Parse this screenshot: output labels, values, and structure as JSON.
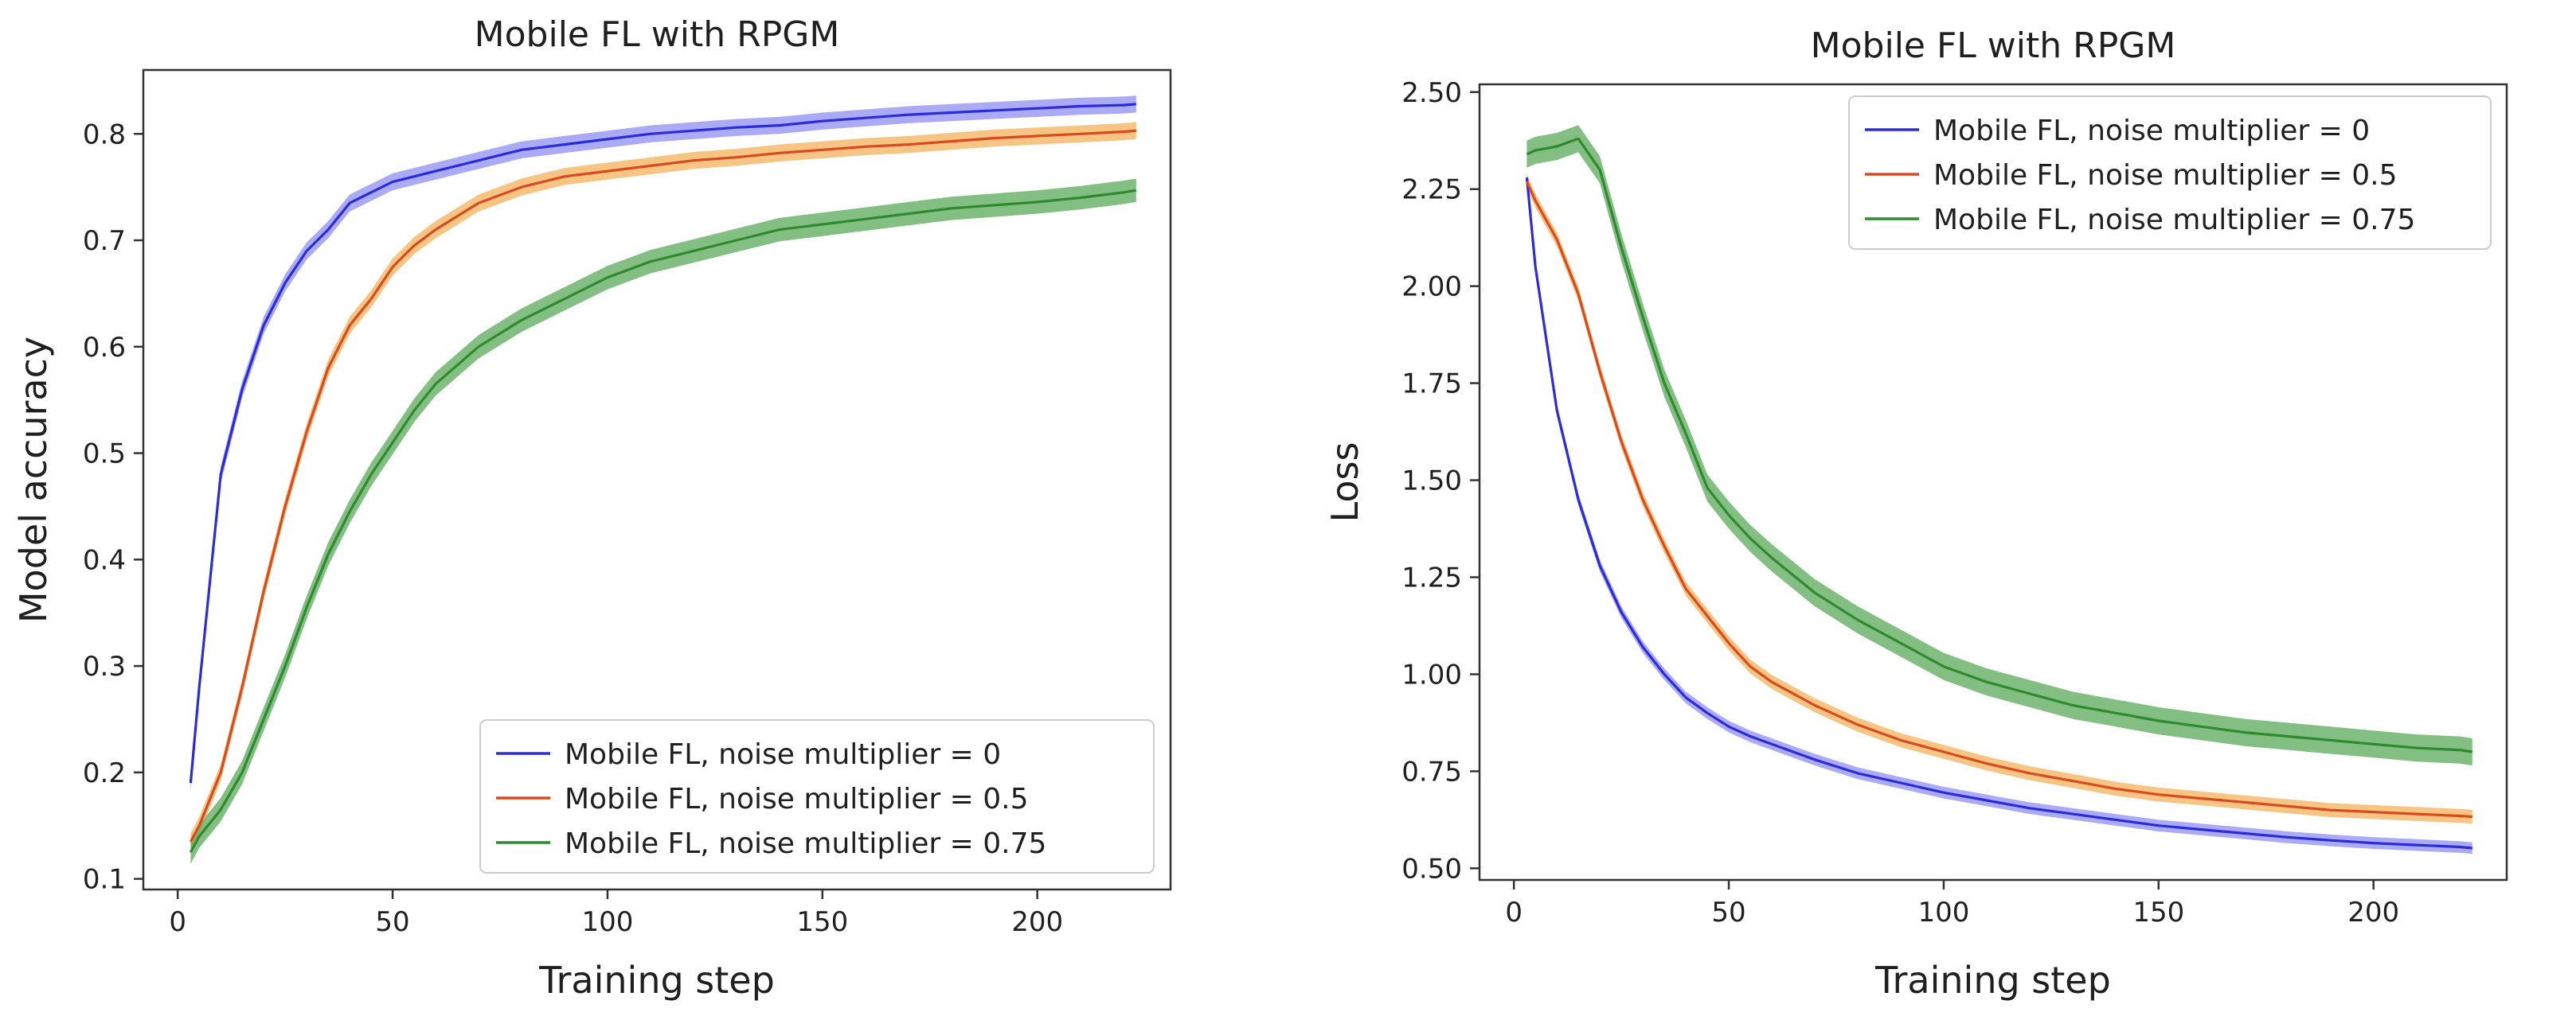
{
  "chart_data": [
    {
      "type": "line",
      "title": "Mobile FL with RPGM",
      "xlabel": "Training step",
      "ylabel": "Model accuracy",
      "xlim": [
        -8,
        231
      ],
      "ylim": [
        0.09,
        0.86
      ],
      "xticks": [
        0,
        50,
        100,
        150,
        200
      ],
      "yticks": [
        0.1,
        0.2,
        0.3,
        0.4,
        0.5,
        0.6,
        0.7,
        0.8
      ],
      "xtick_labels": [
        "0",
        "50",
        "100",
        "150",
        "200"
      ],
      "ytick_labels": [
        "0.1",
        "0.2",
        "0.3",
        "0.4",
        "0.5",
        "0.6",
        "0.7",
        "0.8"
      ],
      "legend_position": "lower-right",
      "x": [
        3,
        5,
        10,
        15,
        20,
        25,
        30,
        35,
        40,
        45,
        50,
        55,
        60,
        70,
        80,
        90,
        100,
        110,
        120,
        130,
        140,
        150,
        160,
        170,
        180,
        190,
        200,
        210,
        220,
        223
      ],
      "series": [
        {
          "name": "Mobile FL, noise multiplier = 0",
          "color": "#2b2bd9",
          "band_color": "#8f8ff2",
          "band": 0.008,
          "values": [
            0.19,
            0.28,
            0.48,
            0.56,
            0.62,
            0.66,
            0.69,
            0.71,
            0.735,
            0.745,
            0.755,
            0.76,
            0.765,
            0.775,
            0.785,
            0.79,
            0.795,
            0.8,
            0.803,
            0.806,
            0.808,
            0.812,
            0.815,
            0.818,
            0.82,
            0.822,
            0.824,
            0.826,
            0.827,
            0.828
          ]
        },
        {
          "name": "Mobile FL, noise multiplier = 0.5",
          "color": "#d94a1f",
          "band_color": "#f3b25a",
          "band": 0.008,
          "values": [
            0.135,
            0.15,
            0.2,
            0.28,
            0.37,
            0.45,
            0.52,
            0.58,
            0.62,
            0.645,
            0.675,
            0.695,
            0.71,
            0.735,
            0.75,
            0.76,
            0.765,
            0.77,
            0.775,
            0.778,
            0.782,
            0.785,
            0.788,
            0.79,
            0.793,
            0.796,
            0.798,
            0.8,
            0.802,
            0.803
          ]
        },
        {
          "name": "Mobile FL, noise multiplier = 0.75",
          "color": "#2f8a2f",
          "band_color": "#5aa95a",
          "band": 0.011,
          "values": [
            0.125,
            0.14,
            0.165,
            0.2,
            0.25,
            0.3,
            0.355,
            0.405,
            0.445,
            0.48,
            0.51,
            0.54,
            0.565,
            0.6,
            0.625,
            0.645,
            0.665,
            0.68,
            0.69,
            0.7,
            0.71,
            0.715,
            0.72,
            0.725,
            0.73,
            0.733,
            0.736,
            0.74,
            0.745,
            0.747
          ]
        }
      ]
    },
    {
      "type": "line",
      "title": "Mobile FL with RPGM",
      "xlabel": "Training step",
      "ylabel": "Loss",
      "xlim": [
        -8,
        231
      ],
      "ylim": [
        0.47,
        2.52
      ],
      "xticks": [
        0,
        50,
        100,
        150,
        200
      ],
      "yticks": [
        0.5,
        0.75,
        1.0,
        1.25,
        1.5,
        1.75,
        2.0,
        2.25,
        2.5
      ],
      "xtick_labels": [
        "0",
        "50",
        "100",
        "150",
        "200"
      ],
      "ytick_labels": [
        "0.50",
        "0.75",
        "1.00",
        "1.25",
        "1.50",
        "1.75",
        "2.00",
        "2.25",
        "2.50"
      ],
      "legend_position": "top-right",
      "x": [
        3,
        5,
        10,
        15,
        20,
        25,
        30,
        35,
        40,
        45,
        50,
        55,
        60,
        70,
        80,
        90,
        100,
        110,
        120,
        130,
        140,
        150,
        160,
        170,
        180,
        190,
        200,
        210,
        220,
        223
      ],
      "series": [
        {
          "name": "Mobile FL, noise multiplier = 0",
          "color": "#2b2bd9",
          "band_color": "#8f8ff2",
          "band": 0.015,
          "values": [
            2.28,
            2.05,
            1.68,
            1.45,
            1.28,
            1.16,
            1.07,
            1.0,
            0.94,
            0.9,
            0.865,
            0.84,
            0.82,
            0.78,
            0.745,
            0.72,
            0.695,
            0.675,
            0.655,
            0.64,
            0.625,
            0.61,
            0.6,
            0.59,
            0.58,
            0.572,
            0.565,
            0.56,
            0.555,
            0.552
          ]
        },
        {
          "name": "Mobile FL, noise multiplier = 0.5",
          "color": "#d94a1f",
          "band_color": "#f3b25a",
          "band": 0.018,
          "values": [
            2.27,
            2.22,
            2.12,
            1.98,
            1.78,
            1.6,
            1.45,
            1.33,
            1.22,
            1.15,
            1.08,
            1.02,
            0.98,
            0.92,
            0.87,
            0.83,
            0.8,
            0.77,
            0.745,
            0.725,
            0.705,
            0.69,
            0.68,
            0.67,
            0.66,
            0.65,
            0.645,
            0.64,
            0.635,
            0.633
          ]
        },
        {
          "name": "Mobile FL, noise multiplier = 0.75",
          "color": "#2f8a2f",
          "band_color": "#5aa95a",
          "band": 0.035,
          "values": [
            2.34,
            2.35,
            2.36,
            2.38,
            2.3,
            2.1,
            1.92,
            1.75,
            1.62,
            1.48,
            1.41,
            1.35,
            1.3,
            1.21,
            1.14,
            1.08,
            1.02,
            0.98,
            0.95,
            0.92,
            0.9,
            0.88,
            0.865,
            0.85,
            0.84,
            0.83,
            0.82,
            0.81,
            0.805,
            0.8
          ]
        }
      ]
    }
  ]
}
